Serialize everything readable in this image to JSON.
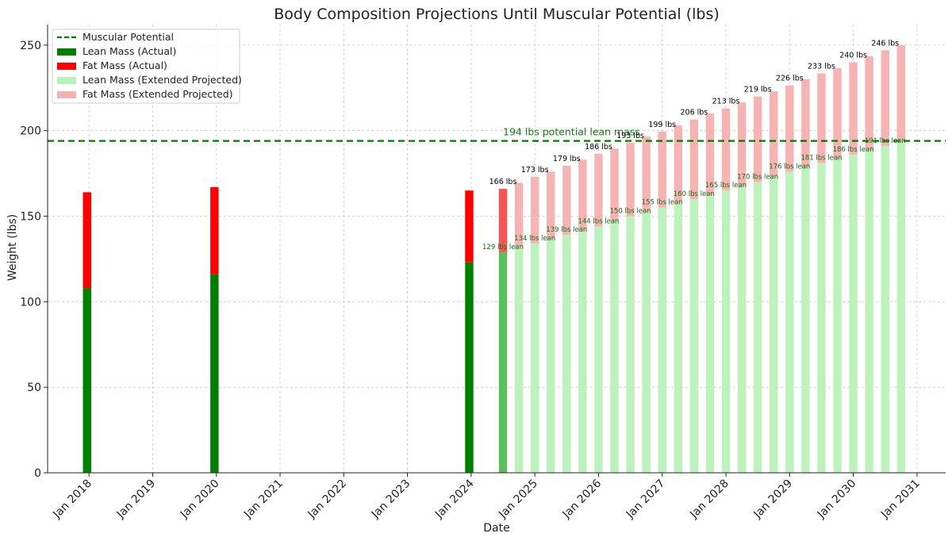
{
  "chart_data": {
    "type": "bar",
    "title": "Body Composition Projections Until Muscular Potential (lbs)",
    "xlabel": "Date",
    "ylabel": "Weight (lbs)",
    "ylim": [
      0,
      262
    ],
    "xlim": [
      2017.35,
      2031.45
    ],
    "yticks": [
      0,
      50,
      100,
      150,
      200,
      250
    ],
    "xticks": [
      {
        "t": 2018.0,
        "label": "Jan 2018"
      },
      {
        "t": 2019.0,
        "label": "Jan 2019"
      },
      {
        "t": 2020.0,
        "label": "Jan 2020"
      },
      {
        "t": 2021.0,
        "label": "Jan 2021"
      },
      {
        "t": 2022.0,
        "label": "Jan 2022"
      },
      {
        "t": 2023.0,
        "label": "Jan 2023"
      },
      {
        "t": 2024.0,
        "label": "Jan 2024"
      },
      {
        "t": 2025.0,
        "label": "Jan 2025"
      },
      {
        "t": 2026.0,
        "label": "Jan 2026"
      },
      {
        "t": 2027.0,
        "label": "Jan 2027"
      },
      {
        "t": 2028.0,
        "label": "Jan 2028"
      },
      {
        "t": 2029.0,
        "label": "Jan 2029"
      },
      {
        "t": 2030.0,
        "label": "Jan 2030"
      },
      {
        "t": 2031.0,
        "label": "Jan 2031"
      }
    ],
    "grid": true,
    "legend_position": "top-left",
    "legend": [
      {
        "label": "Muscular Potential",
        "kind": "line",
        "color": "#007a00"
      },
      {
        "label": "Lean Mass (Actual)",
        "kind": "patch",
        "color": "#008000"
      },
      {
        "label": "Fat Mass (Actual)",
        "kind": "patch",
        "color": "#ff0000"
      },
      {
        "label": "Lean Mass (Extended Projected)",
        "kind": "patch",
        "color": "#b9f2b9"
      },
      {
        "label": "Fat Mass (Extended Projected)",
        "kind": "patch",
        "color": "#f5b0b0"
      }
    ],
    "colors": {
      "lean_actual": "#008000",
      "fat_actual": "#ff0000",
      "lean_projected": "#bdf2bd",
      "fat_projected": "#f6b3b3",
      "potential_line": "#007a00"
    },
    "bar_width_years": 0.13,
    "muscular_potential": 194,
    "potential_label": "194 lbs potential lean mass",
    "actual": [
      {
        "t": 2017.97,
        "lean": 108,
        "fat": 56
      },
      {
        "t": 2019.97,
        "lean": 116,
        "fat": 51
      },
      {
        "t": 2023.97,
        "lean": 123,
        "fat": 42
      }
    ],
    "projected": [
      {
        "t": 2024.5,
        "lean": 129,
        "fat": 37,
        "total_label": "166 lbs",
        "lean_label": "129 lbs lean",
        "transition": true
      },
      {
        "t": 2024.75,
        "lean": 132,
        "fat": 37.5
      },
      {
        "t": 2025.0,
        "lean": 134,
        "fat": 39,
        "total_label": "173 lbs",
        "lean_label": "134 lbs lean"
      },
      {
        "t": 2025.25,
        "lean": 136.5,
        "fat": 39.5
      },
      {
        "t": 2025.5,
        "lean": 139,
        "fat": 40.5,
        "total_label": "179 lbs",
        "lean_label": "139 lbs lean"
      },
      {
        "t": 2025.75,
        "lean": 141.5,
        "fat": 41.5
      },
      {
        "t": 2026.0,
        "lean": 144,
        "fat": 42.5,
        "total_label": "186 lbs",
        "lean_label": "144 lbs lean"
      },
      {
        "t": 2026.25,
        "lean": 147,
        "fat": 42.5
      },
      {
        "t": 2026.5,
        "lean": 150,
        "fat": 43,
        "total_label": "193 lbs",
        "lean_label": "150 lbs lean"
      },
      {
        "t": 2026.75,
        "lean": 152.5,
        "fat": 44
      },
      {
        "t": 2027.0,
        "lean": 155,
        "fat": 44.5,
        "total_label": "199 lbs",
        "lean_label": "155 lbs lean"
      },
      {
        "t": 2027.25,
        "lean": 157.5,
        "fat": 45.5
      },
      {
        "t": 2027.5,
        "lean": 160,
        "fat": 46.5,
        "total_label": "206 lbs",
        "lean_label": "160 lbs lean"
      },
      {
        "t": 2027.75,
        "lean": 162.5,
        "fat": 47.5
      },
      {
        "t": 2028.0,
        "lean": 165,
        "fat": 48,
        "total_label": "213 lbs",
        "lean_label": "165 lbs lean"
      },
      {
        "t": 2028.25,
        "lean": 167.5,
        "fat": 49
      },
      {
        "t": 2028.5,
        "lean": 170,
        "fat": 50,
        "total_label": "219 lbs",
        "lean_label": "170 lbs lean"
      },
      {
        "t": 2028.75,
        "lean": 173,
        "fat": 50
      },
      {
        "t": 2029.0,
        "lean": 176,
        "fat": 50.5,
        "total_label": "226 lbs",
        "lean_label": "176 lbs lean"
      },
      {
        "t": 2029.25,
        "lean": 178.5,
        "fat": 51.5
      },
      {
        "t": 2029.5,
        "lean": 181,
        "fat": 52.5,
        "total_label": "233 lbs",
        "lean_label": "181 lbs lean"
      },
      {
        "t": 2029.75,
        "lean": 183.5,
        "fat": 53
      },
      {
        "t": 2030.0,
        "lean": 186,
        "fat": 54,
        "total_label": "240 lbs",
        "lean_label": "186 lbs lean"
      },
      {
        "t": 2030.25,
        "lean": 188.5,
        "fat": 55
      },
      {
        "t": 2030.5,
        "lean": 191,
        "fat": 56,
        "total_label": "246 lbs",
        "lean_label": "191 lbs lean"
      },
      {
        "t": 2030.75,
        "lean": 194,
        "fat": 56
      }
    ]
  }
}
